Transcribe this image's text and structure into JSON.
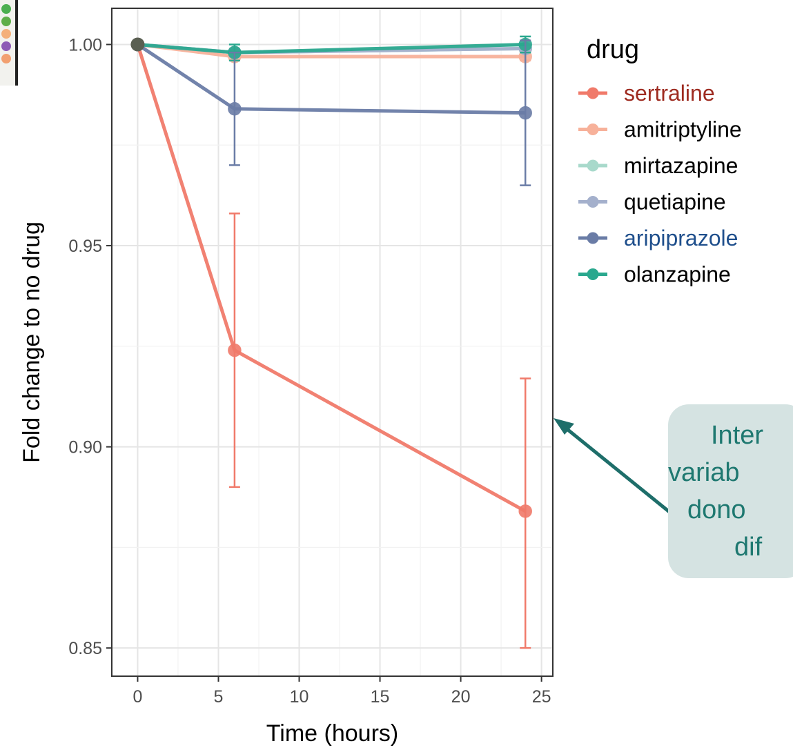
{
  "chart_data": {
    "type": "line",
    "xlabel": "Time (hours)",
    "ylabel": "Fold change to no drug",
    "xlim": [
      -1.6,
      25.7
    ],
    "ylim": [
      0.843,
      1.009
    ],
    "x_ticks": [
      0,
      5,
      10,
      15,
      20,
      25
    ],
    "y_ticks": [
      0.85,
      0.9,
      0.95,
      1.0
    ],
    "x_tick_labels": [
      "0",
      "5",
      "10",
      "15",
      "20",
      "25"
    ],
    "y_tick_labels": [
      "0.85",
      "0.90",
      "0.95",
      "1.00"
    ],
    "grid": true,
    "legend_title": "drug",
    "legend_position": "right",
    "x": [
      0,
      6,
      24
    ],
    "series": [
      {
        "name": "sertraline",
        "color": "#f07a6a",
        "legend_text_color": "#9e2b20",
        "values": [
          1.0,
          0.924,
          0.884
        ],
        "error_low": [
          1.0,
          0.89,
          0.85
        ],
        "error_high": [
          1.0,
          0.958,
          0.917
        ]
      },
      {
        "name": "amitriptyline",
        "color": "#f7b19a",
        "legend_text_color": "#000000",
        "values": [
          1.0,
          0.997,
          0.997
        ],
        "error_low": [
          1.0,
          0.996,
          0.996
        ],
        "error_high": [
          1.0,
          0.998,
          0.998
        ]
      },
      {
        "name": "mirtazapine",
        "color": "#a8d9cb",
        "legend_text_color": "#000000",
        "values": [
          1.0,
          0.998,
          0.999
        ],
        "error_low": [
          1.0,
          0.997,
          0.998
        ],
        "error_high": [
          1.0,
          0.999,
          1.0
        ]
      },
      {
        "name": "quetiapine",
        "color": "#a4b0cc",
        "legend_text_color": "#000000",
        "values": [
          1.0,
          0.998,
          0.999
        ],
        "error_low": [
          1.0,
          0.997,
          0.998
        ],
        "error_high": [
          1.0,
          0.999,
          1.0
        ]
      },
      {
        "name": "aripiprazole",
        "color": "#6a7ca6",
        "legend_text_color": "#1f4f8c",
        "values": [
          1.0,
          0.984,
          0.983
        ],
        "error_low": [
          1.0,
          0.97,
          0.965
        ],
        "error_high": [
          1.0,
          0.998,
          1.001
        ]
      },
      {
        "name": "olanzapine",
        "color": "#2aa88e",
        "legend_text_color": "#000000",
        "values": [
          1.0,
          0.998,
          1.0
        ],
        "error_low": [
          1.0,
          0.996,
          0.998
        ],
        "error_high": [
          1.0,
          1.0,
          1.002
        ]
      }
    ]
  },
  "callout": {
    "lines": [
      "Inter",
      "variab",
      "dono",
      "dif"
    ],
    "background": "#d5e3e2",
    "text_color": "#1e7870",
    "arrow_color": "#1e6e6a"
  }
}
